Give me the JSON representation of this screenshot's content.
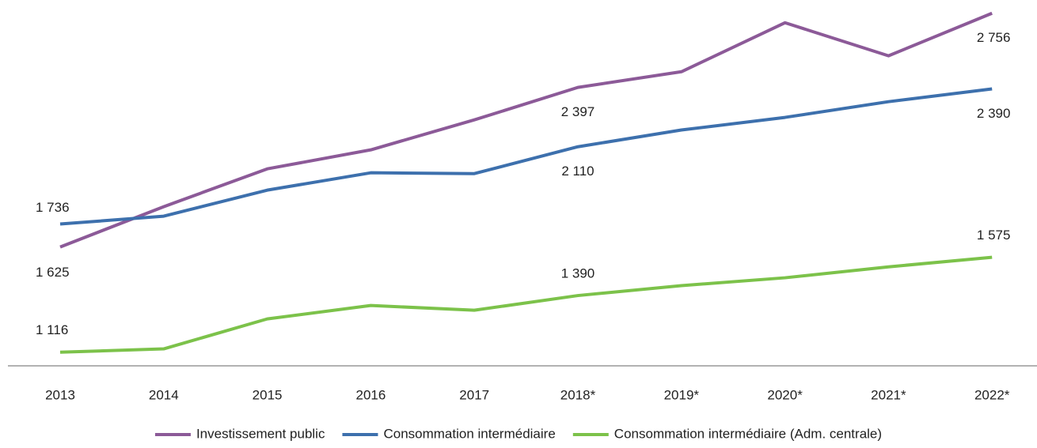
{
  "chart_data": {
    "type": "line",
    "categories": [
      "2013",
      "2014",
      "2015",
      "2016",
      "2017",
      "2018*",
      "2019*",
      "2020*",
      "2021*",
      "2022*"
    ],
    "series": [
      {
        "name": "Investissement public",
        "color": "#8c5a98",
        "values": [
          1625,
          1820,
          2003,
          2095,
          2240,
          2397,
          2473,
          2710,
          2550,
          2756
        ],
        "value_labels": [
          "1 625",
          null,
          null,
          null,
          null,
          "2 397",
          null,
          null,
          null,
          "2 756"
        ]
      },
      {
        "name": "Consommation intermédiaire",
        "color": "#3d70ad",
        "values": [
          1736,
          1774,
          1900,
          1984,
          1980,
          2110,
          2191,
          2252,
          2328,
          2390
        ],
        "value_labels": [
          "1 736",
          null,
          null,
          null,
          null,
          "2 110",
          null,
          null,
          null,
          "2 390"
        ]
      },
      {
        "name": "Consommation intermédiaire (Adm. centrale)",
        "color": "#7cc24a",
        "values": [
          1116,
          1132,
          1277,
          1342,
          1319,
          1390,
          1438,
          1476,
          1529,
          1575
        ],
        "value_labels": [
          "1 116",
          null,
          null,
          null,
          null,
          "1 390",
          null,
          null,
          null,
          "1 575"
        ]
      }
    ],
    "ylim": [
      1050,
      2820
    ],
    "legend": "bottom"
  }
}
